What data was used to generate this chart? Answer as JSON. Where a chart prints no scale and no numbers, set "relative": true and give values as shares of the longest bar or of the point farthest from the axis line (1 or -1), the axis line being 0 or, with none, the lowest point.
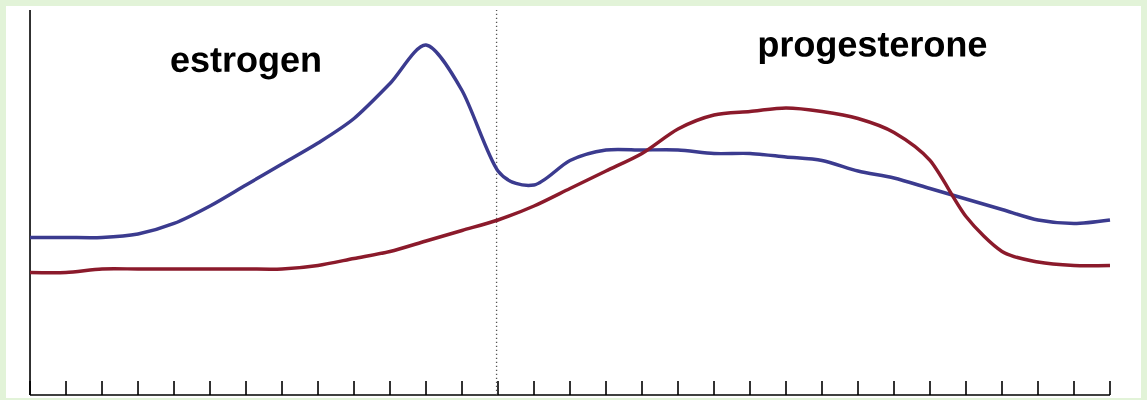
{
  "chart_data": {
    "type": "line",
    "relative": true,
    "categories": [
      null,
      null,
      null,
      null,
      null,
      null,
      null,
      null,
      null,
      null,
      null,
      null,
      null,
      null,
      null,
      null,
      null,
      null,
      null,
      null,
      null,
      null,
      null,
      null,
      null,
      null,
      null,
      null,
      null,
      null,
      null
    ],
    "series": [
      {
        "name": "estrogen",
        "color": "#3b3b8f",
        "values": [
          0.45,
          0.45,
          0.45,
          0.46,
          0.49,
          0.54,
          0.6,
          0.66,
          0.72,
          0.79,
          0.89,
          1,
          0.87,
          0.64,
          0.6,
          0.67,
          0.7,
          0.7,
          0.7,
          0.69,
          0.69,
          0.68,
          0.67,
          0.64,
          0.62,
          0.59,
          0.56,
          0.53,
          0.5,
          0.49,
          0.5
        ]
      },
      {
        "name": "progesterone",
        "color": "#8b1a2b",
        "values": [
          0.35,
          0.35,
          0.36,
          0.36,
          0.36,
          0.36,
          0.36,
          0.36,
          0.37,
          0.39,
          0.41,
          0.44,
          0.47,
          0.5,
          0.54,
          0.59,
          0.64,
          0.69,
          0.76,
          0.8,
          0.81,
          0.82,
          0.81,
          0.79,
          0.75,
          0.67,
          0.51,
          0.41,
          0.38,
          0.37,
          0.37
        ]
      }
    ]
  }
}
